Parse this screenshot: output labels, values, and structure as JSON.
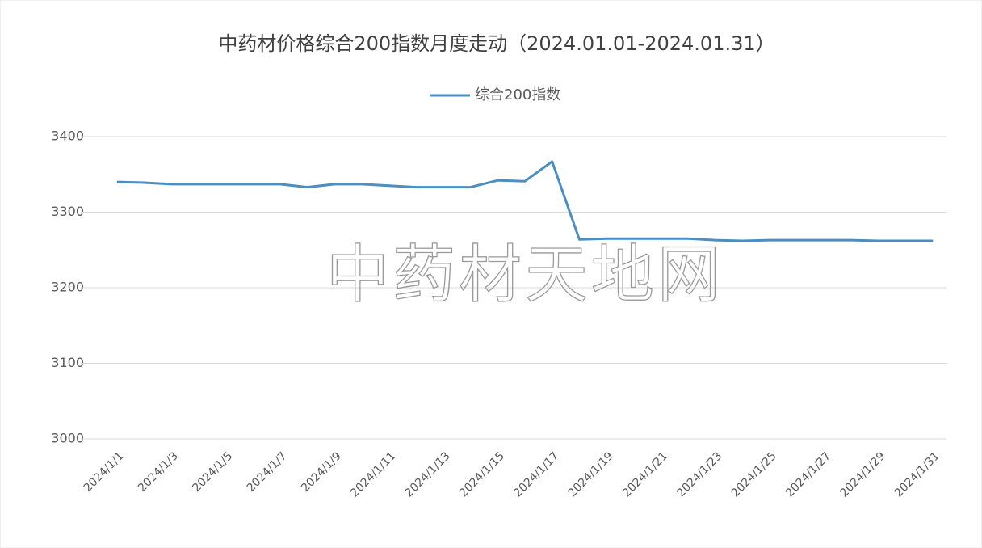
{
  "chart_data": {
    "type": "line",
    "title": "中药材价格综合200指数月度走动（2024.01.01-2024.01.31）",
    "watermark": "中药材天地网",
    "categories": [
      "2024/1/1",
      null,
      "2024/1/3",
      null,
      "2024/1/5",
      null,
      "2024/1/7",
      null,
      "2024/1/9",
      null,
      "2024/1/11",
      null,
      "2024/1/13",
      null,
      "2024/1/15",
      null,
      "2024/1/17",
      null,
      "2024/1/19",
      null,
      "2024/1/21",
      null,
      "2024/1/23",
      null,
      "2024/1/25",
      null,
      "2024/1/27",
      null,
      "2024/1/29",
      null,
      "2024/1/31"
    ],
    "series": [
      {
        "name": "综合200指数",
        "color": "#4a8ec2",
        "values": [
          3340,
          3339,
          3337,
          3337,
          3337,
          3337,
          3337,
          3333,
          3337,
          3337,
          3335,
          3333,
          3333,
          3333,
          3342,
          3341,
          3367,
          3264,
          3265,
          3265,
          3265,
          3265,
          3263,
          3262,
          3263,
          3263,
          3263,
          3263,
          3262,
          3262,
          3262
        ]
      }
    ],
    "ylim": [
      3000,
      3400
    ],
    "yticks": [
      3000,
      3100,
      3200,
      3300,
      3400
    ],
    "grid": true,
    "legend": "top"
  }
}
